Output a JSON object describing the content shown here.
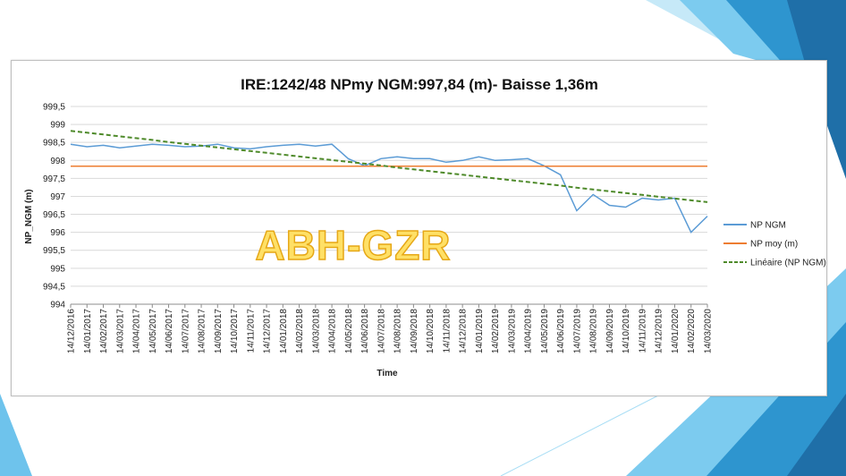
{
  "chart_data": {
    "type": "line",
    "title": "IRE:1242/48 NPmy NGM:997,84 (m)- Baisse 1,36m",
    "xlabel": "Time",
    "ylabel": "NP_NGM (m)",
    "ylim": [
      994,
      999.5
    ],
    "y_ticks": [
      "994",
      "994,5",
      "995",
      "995,5",
      "996",
      "996,5",
      "997",
      "997,5",
      "998",
      "998,5",
      "999",
      "999,5"
    ],
    "categories": [
      "14/12/2016",
      "14/01/2017",
      "14/02/2017",
      "14/03/2017",
      "14/04/2017",
      "14/05/2017",
      "14/06/2017",
      "14/07/2017",
      "14/08/2017",
      "14/09/2017",
      "14/10/2017",
      "14/11/2017",
      "14/12/2017",
      "14/01/2018",
      "14/02/2018",
      "14/03/2018",
      "14/04/2018",
      "14/05/2018",
      "14/06/2018",
      "14/07/2018",
      "14/08/2018",
      "14/09/2018",
      "14/10/2018",
      "14/11/2018",
      "14/12/2018",
      "14/01/2019",
      "14/02/2019",
      "14/03/2019",
      "14/04/2019",
      "14/05/2019",
      "14/06/2019",
      "14/07/2019",
      "14/08/2019",
      "14/09/2019",
      "14/10/2019",
      "14/11/2019",
      "14/12/2019",
      "14/01/2020",
      "14/02/2020",
      "14/03/2020"
    ],
    "grid": true,
    "legend_position": "right",
    "series": [
      {
        "name": "NP NGM",
        "color": "#5b9bd5",
        "style": "solid",
        "values": [
          998.45,
          998.38,
          998.42,
          998.35,
          998.4,
          998.45,
          998.42,
          998.38,
          998.4,
          998.45,
          998.35,
          998.32,
          998.38,
          998.42,
          998.45,
          998.4,
          998.45,
          998.05,
          997.85,
          998.05,
          998.1,
          998.05,
          998.05,
          997.95,
          998.0,
          998.1,
          998.0,
          998.02,
          998.05,
          997.85,
          997.6,
          996.6,
          997.05,
          996.75,
          996.7,
          996.95,
          996.9,
          996.95,
          996.0,
          996.45
        ]
      },
      {
        "name": "NP moy (m)",
        "color": "#ed7d31",
        "style": "solid",
        "values": [
          997.84,
          997.84,
          997.84,
          997.84,
          997.84,
          997.84,
          997.84,
          997.84,
          997.84,
          997.84,
          997.84,
          997.84,
          997.84,
          997.84,
          997.84,
          997.84,
          997.84,
          997.84,
          997.84,
          997.84,
          997.84,
          997.84,
          997.84,
          997.84,
          997.84,
          997.84,
          997.84,
          997.84,
          997.84,
          997.84,
          997.84,
          997.84,
          997.84,
          997.84,
          997.84,
          997.84,
          997.84,
          997.84,
          997.84,
          997.84
        ]
      },
      {
        "name": "Linéaire (NP NGM)",
        "color": "#4e8a2a",
        "style": "dashed",
        "values": [
          998.82,
          998.77,
          998.72,
          998.67,
          998.62,
          998.57,
          998.51,
          998.46,
          998.41,
          998.36,
          998.31,
          998.26,
          998.21,
          998.16,
          998.11,
          998.06,
          998.01,
          997.96,
          997.91,
          997.86,
          997.8,
          997.75,
          997.7,
          997.65,
          997.6,
          997.55,
          997.5,
          997.45,
          997.4,
          997.35,
          997.3,
          997.24,
          997.19,
          997.14,
          997.09,
          997.04,
          996.99,
          996.94,
          996.89,
          996.84
        ]
      }
    ],
    "watermark": "ABH-GZR"
  },
  "colors": {
    "deco_dark": "#1f6fa8",
    "deco_mid": "#2f97d0",
    "deco_light": "#6ec3ec",
    "deco_pale": "#a9def5"
  }
}
